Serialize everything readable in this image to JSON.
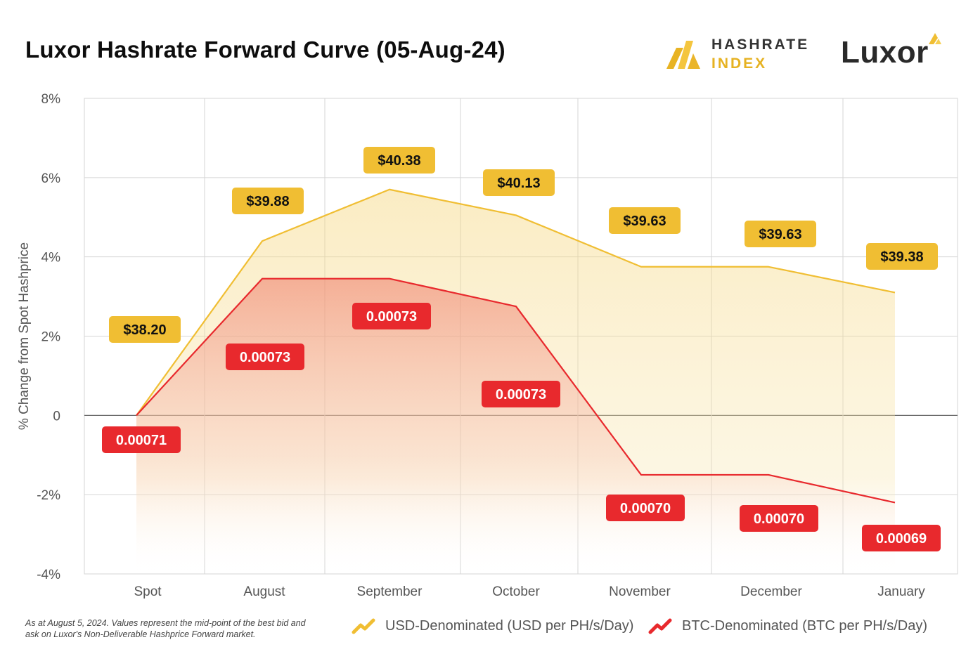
{
  "header": {
    "title": "Luxor Hashrate Forward Curve (05-Aug-24)",
    "logo_hashrate_line1": "HASHRATE",
    "logo_hashrate_line2": "INDEX",
    "logo_luxor": "Luxor"
  },
  "colors": {
    "usd": "#f0be33",
    "btc": "#e8292d",
    "usd_fill": "#f7dd8f",
    "btc_fill": "#f28a78",
    "grid": "#d5d5d5"
  },
  "chart_data": {
    "type": "line",
    "ylabel": "% Change from Spot Hashprice",
    "xlabel": "",
    "ylim": [
      -4,
      8
    ],
    "yticks": [
      8,
      6,
      4,
      2,
      0,
      -2,
      -4
    ],
    "ytick_labels": [
      "8%",
      "6%",
      "4%",
      "2%",
      "0",
      "-2%",
      "-4%"
    ],
    "categories": [
      "Spot",
      "August",
      "September",
      "October",
      "November",
      "December",
      "January"
    ],
    "grid": true,
    "series": [
      {
        "key": "usd",
        "name": "USD-Denominated (USD per PH/s/Day)",
        "values": [
          0,
          4.4,
          5.7,
          5.05,
          3.75,
          3.75,
          3.1
        ],
        "labels": [
          "$38.20",
          "$39.88",
          "$40.38",
          "$40.13",
          "$39.63",
          "$39.63",
          "$39.38"
        ]
      },
      {
        "key": "btc",
        "name": "BTC-Denominated (BTC per PH/s/Day)",
        "values": [
          0,
          3.45,
          3.45,
          2.75,
          -1.5,
          -1.5,
          -2.2
        ],
        "labels": [
          "0.00071",
          "0.00073",
          "0.00073",
          "0.00073",
          "0.00070",
          "0.00070",
          "0.00069"
        ]
      }
    ],
    "legend": "bottom-right"
  },
  "footnote": "As at August 5, 2024. Values represent the mid-point of the best bid and ask on Luxor's Non-Deliverable Hashprice Forward market.",
  "legend": {
    "usd_label": "USD-Denominated (USD per PH/s/Day)",
    "btc_label": "BTC-Denominated (BTC per PH/s/Day)"
  }
}
